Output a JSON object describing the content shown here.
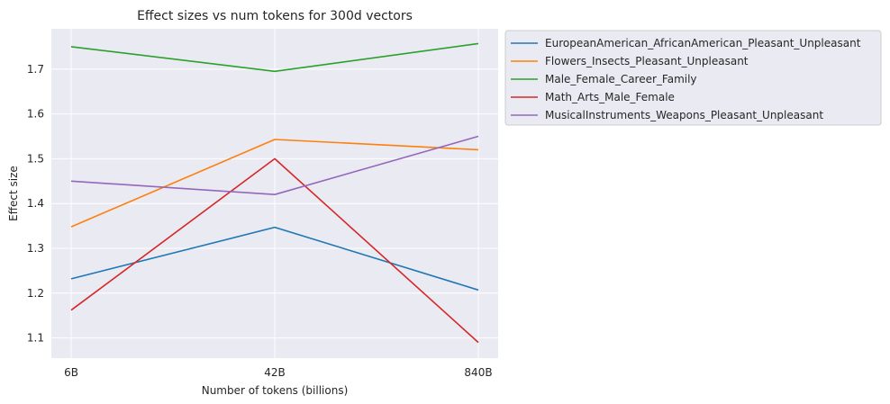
{
  "chart_data": {
    "type": "line",
    "title": "Effect sizes vs num tokens for 300d vectors",
    "xlabel": "Number of tokens (billions)",
    "ylabel": "Effect size",
    "categories": [
      "6B",
      "42B",
      "840B"
    ],
    "ylim": [
      1.055,
      1.79
    ],
    "yticks": [
      "1.1",
      "1.2",
      "1.3",
      "1.4",
      "1.5",
      "1.6",
      "1.7"
    ],
    "grid": true,
    "legend_position": "outside-top-right",
    "series": [
      {
        "name": "EuropeanAmerican_AfricanAmerican_Pleasant_Unpleasant",
        "color": "#1f77b4",
        "values": [
          1.232,
          1.347,
          1.207
        ]
      },
      {
        "name": "Flowers_Insects_Pleasant_Unpleasant",
        "color": "#ff7f0e",
        "values": [
          1.348,
          1.543,
          1.52
        ]
      },
      {
        "name": "Male_Female_Career_Family",
        "color": "#2ca02c",
        "values": [
          1.75,
          1.695,
          1.757
        ]
      },
      {
        "name": "Math_Arts_Male_Female",
        "color": "#d62728",
        "values": [
          1.162,
          1.5,
          1.09
        ]
      },
      {
        "name": "MusicalInstruments_Weapons_Pleasant_Unpleasant",
        "color": "#9467bd",
        "values": [
          1.45,
          1.42,
          1.55
        ]
      }
    ]
  }
}
